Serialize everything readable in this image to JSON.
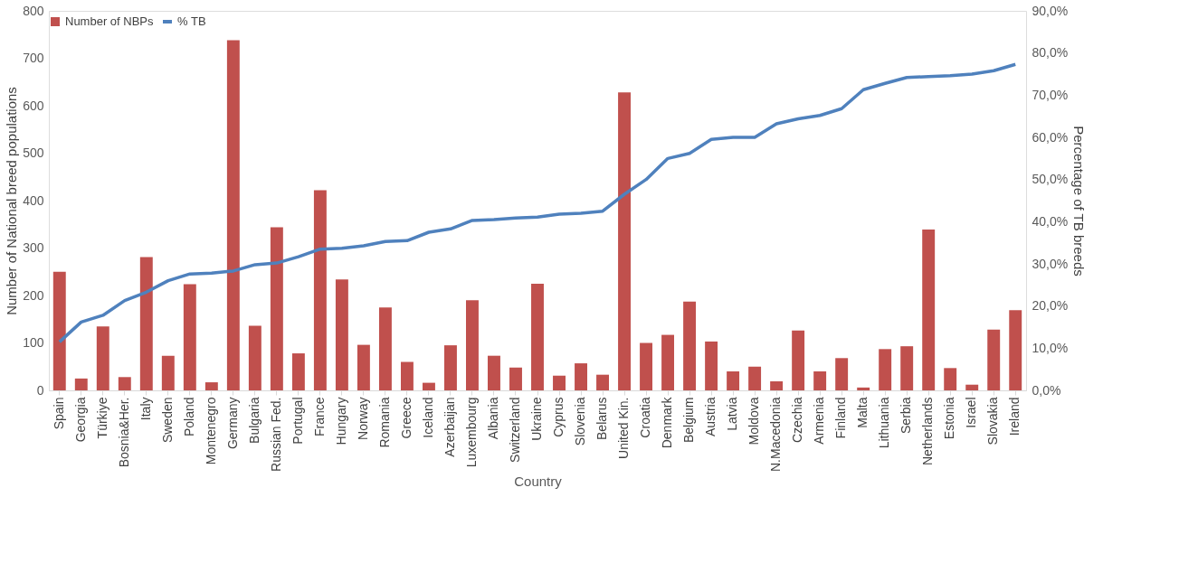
{
  "chart_data": {
    "type": "bar",
    "xlabel": "Country",
    "ylabel": "Number of National breed populations",
    "y2label": "Percentage of TB breeds",
    "categories": [
      "Spain",
      "Georgia",
      "Türkiye",
      "Bosnia&Her.",
      "Italy",
      "Sweden",
      "Poland",
      "Montenegro",
      "Germany",
      "Bulgaria",
      "Russian Fed.",
      "Portugal",
      "France",
      "Hungary",
      "Norway",
      "Romania",
      "Greece",
      "Iceland",
      "Azerbaijan",
      "Luxembourg",
      "Albania",
      "Switzerland",
      "Ukraine",
      "Cyprus",
      "Slovenia",
      "Belarus",
      "United Kin.",
      "Croatia",
      "Denmark",
      "Belgium",
      "Austria",
      "Latvia",
      "Moldova",
      "N.Macedonia",
      "Czechia",
      "Armenia",
      "Finland",
      "Malta",
      "Lithuania",
      "Serbia",
      "Netherlands",
      "Estonia",
      "Israel",
      "Slovakia",
      "Ireland"
    ],
    "series": [
      {
        "name": "Number of NBPs",
        "color": "#c0504d",
        "values": [
          250,
          25,
          135,
          28,
          281,
          73,
          224,
          17,
          738,
          136,
          344,
          78,
          422,
          234,
          96,
          175,
          60,
          16,
          95,
          190,
          73,
          48,
          225,
          31,
          57,
          33,
          628,
          100,
          117,
          187,
          103,
          40,
          50,
          19,
          126,
          40,
          68,
          6,
          87,
          93,
          339,
          47,
          12,
          128,
          169
        ]
      },
      {
        "name": "% TB",
        "type": "line",
        "axis": "y2",
        "color": "#4f81bd",
        "values": [
          11.5,
          16.2,
          17.8,
          21.3,
          23.3,
          26.0,
          27.6,
          27.8,
          28.3,
          29.8,
          30.2,
          31.7,
          33.5,
          33.7,
          34.3,
          35.3,
          35.5,
          37.5,
          38.3,
          40.3,
          40.5,
          40.9,
          41.1,
          41.8,
          42.0,
          42.5,
          46.5,
          50.0,
          55.0,
          56.2,
          59.5,
          60.0,
          60.0,
          63.2,
          64.4,
          65.2,
          66.8,
          71.3,
          72.8,
          74.2,
          74.4,
          74.6,
          75.0,
          75.8,
          77.3
        ]
      }
    ],
    "ylim": [
      0,
      800
    ],
    "yticks": [
      0,
      100,
      200,
      300,
      400,
      500,
      600,
      700,
      800
    ],
    "y2lim": [
      0,
      90
    ],
    "y2ticks": [
      {
        "value": 0,
        "label": "0,0%"
      },
      {
        "value": 10,
        "label": "10,0%"
      },
      {
        "value": 20,
        "label": "20,0%"
      },
      {
        "value": 30,
        "label": "30,0%"
      },
      {
        "value": 40,
        "label": "40,0%"
      },
      {
        "value": 50,
        "label": "50,0%"
      },
      {
        "value": 60,
        "label": "60,0%"
      },
      {
        "value": 70,
        "label": "70,0%"
      },
      {
        "value": 80,
        "label": "80,0%"
      },
      {
        "value": 90,
        "label": "90,0%"
      }
    ],
    "legend": "top",
    "grid": false,
    "marker": "none"
  }
}
